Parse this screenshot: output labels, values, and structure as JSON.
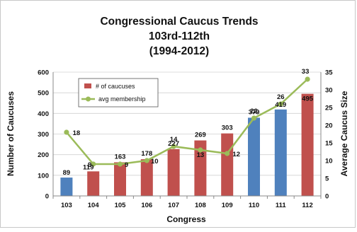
{
  "chart_data": {
    "type": "bar",
    "title_lines": [
      "Congressional Caucus Trends",
      "103rd-112th",
      "(1994-2012)"
    ],
    "xlabel": "Congress",
    "ylabel": "Number of Caucuses",
    "y2label": "Average Caucus Size",
    "categories": [
      "103",
      "104",
      "105",
      "106",
      "107",
      "108",
      "109",
      "110",
      "111",
      "112"
    ],
    "ylim": [
      0,
      600
    ],
    "yticks": [
      "0",
      "100",
      "200",
      "300",
      "400",
      "500",
      "600"
    ],
    "y2lim": [
      0,
      35
    ],
    "y2ticks": [
      "0",
      "5",
      "10",
      "15",
      "20",
      "25",
      "30",
      "35"
    ],
    "grid": true,
    "legend_position": "top-left",
    "series": [
      {
        "name": "# of caucuses",
        "kind": "bar",
        "axis": "left",
        "values": [
          89,
          119,
          163,
          178,
          227,
          269,
          303,
          379,
          419,
          495
        ],
        "labels": [
          "89",
          "119",
          "163",
          "178",
          "227",
          "269",
          "303",
          "379",
          "419",
          "495"
        ],
        "bar_colors": [
          "#4f81bd",
          "#c0504d",
          "#c0504d",
          "#c0504d",
          "#c0504d",
          "#c0504d",
          "#c0504d",
          "#4f81bd",
          "#4f81bd",
          "#c0504d"
        ]
      },
      {
        "name": "avg membership",
        "kind": "line",
        "axis": "right",
        "values": [
          18,
          9,
          9,
          10,
          14,
          13,
          12,
          22,
          26,
          33
        ],
        "labels": [
          "18",
          "9",
          "9",
          "10",
          "14",
          "13",
          "12",
          "22",
          "26",
          "33"
        ],
        "color": "#9bbb59"
      }
    ]
  }
}
